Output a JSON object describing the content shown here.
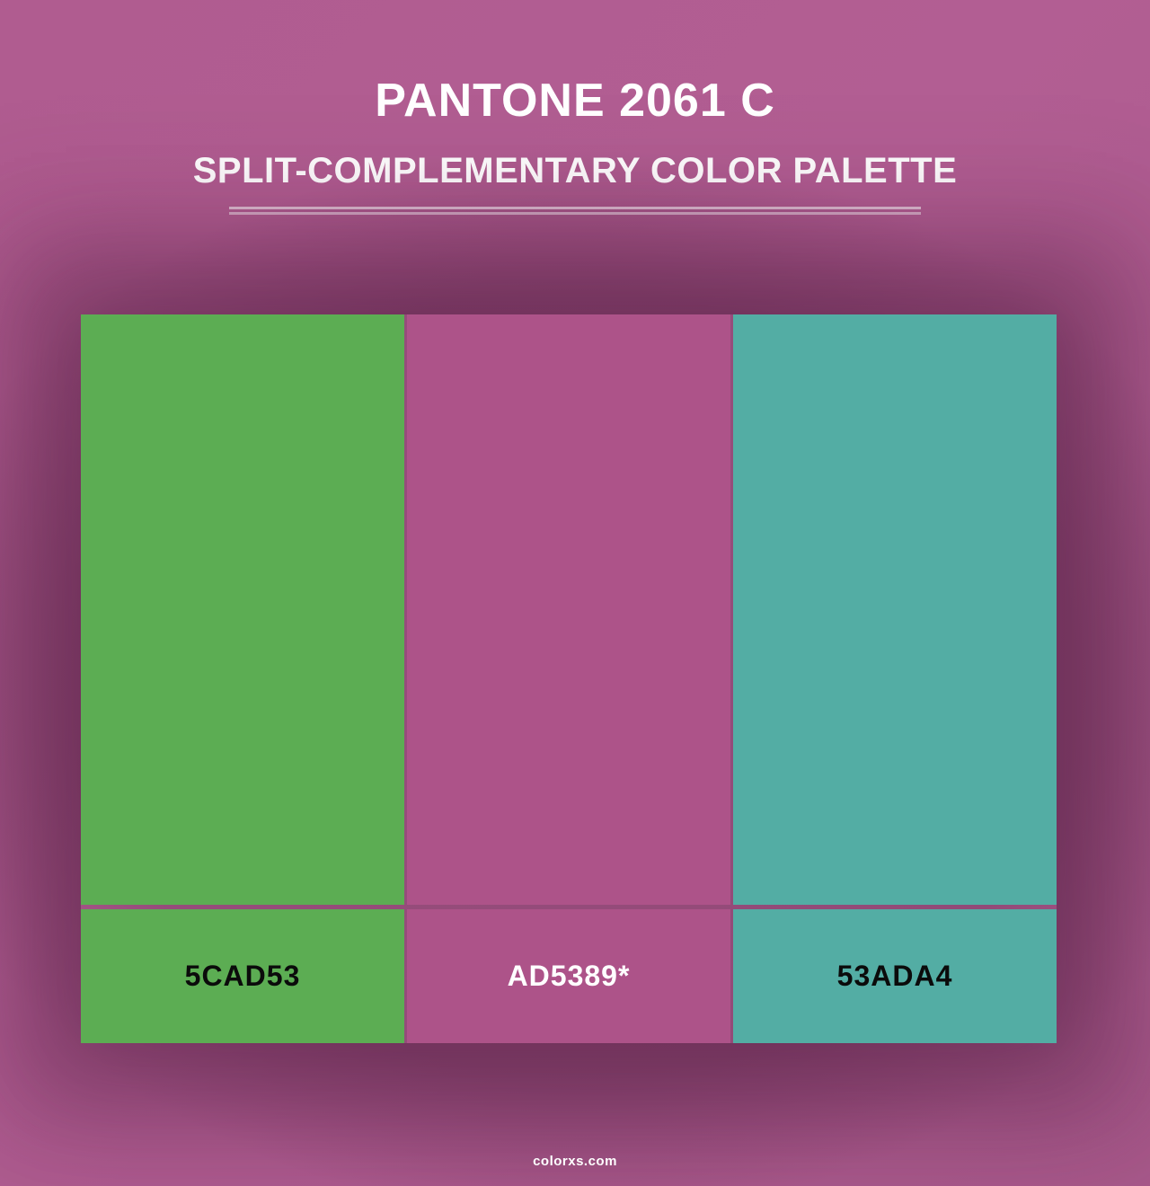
{
  "header": {
    "title": "PANTONE 2061 C",
    "subtitle": "SPLIT-COMPLEMENTARY COLOR PALETTE"
  },
  "palette": {
    "swatches": [
      {
        "hex_label": "5CAD53",
        "color": "#5CAD53",
        "text_color": "#0b0b0b"
      },
      {
        "hex_label": "AD5389*",
        "color": "#AD5389",
        "text_color": "#ffffff"
      },
      {
        "hex_label": "53ADA4",
        "color": "#53ADA4",
        "text_color": "#0b0b0b"
      }
    ]
  },
  "footer": {
    "site": "colorxs.com"
  },
  "colors": {
    "background": "#B25E93",
    "divider": "rgba(255,255,255,0.6)",
    "shadow_halo": "rgba(83,32,66,0.45)"
  }
}
